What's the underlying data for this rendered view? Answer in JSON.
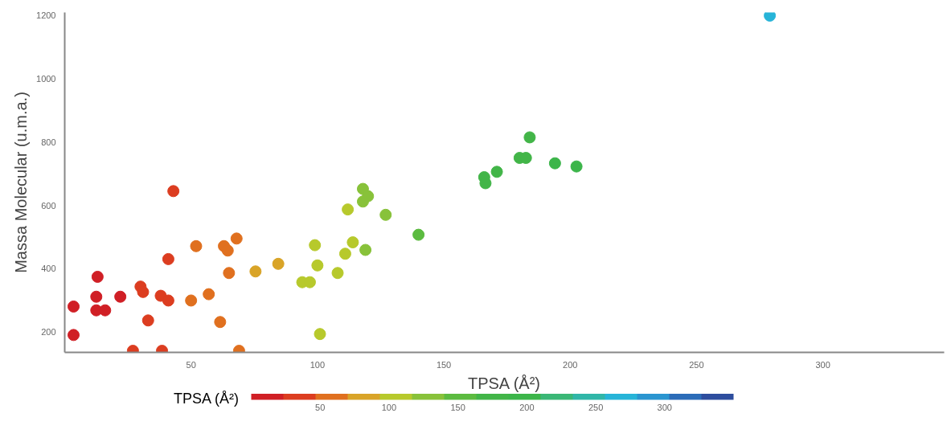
{
  "chart_data": {
    "type": "scatter",
    "xlabel": "TPSA (Å²)",
    "ylabel": "Massa Molecular (u.m.a.)",
    "clabel": "TPSA (Å²)",
    "x": [
      3.5,
      3.5,
      13,
      12.5,
      12.5,
      16,
      22,
      30,
      31,
      33,
      27,
      38.5,
      38,
      41,
      41,
      43,
      52,
      50,
      57,
      61.5,
      63,
      64.5,
      65,
      68,
      69,
      75.5,
      84.5,
      94,
      97,
      99,
      100,
      101,
      108,
      111,
      114,
      119,
      112,
      118,
      118,
      120,
      127,
      140,
      166,
      166.5,
      171,
      180,
      182.5,
      184,
      194,
      202.5,
      279
    ],
    "values": [
      280,
      190,
      374,
      311,
      268,
      268,
      311,
      343,
      326,
      236,
      140,
      140,
      314,
      299,
      430,
      645,
      471,
      299,
      319,
      231,
      471,
      457,
      386,
      495,
      140,
      391,
      415,
      357,
      357,
      474,
      410,
      193,
      386,
      447,
      483,
      459,
      587,
      652,
      612,
      629,
      570,
      507,
      689,
      670,
      706,
      750,
      750,
      815,
      733,
      723,
      1200
    ],
    "cvalues": [
      3.5,
      3.5,
      13,
      12.5,
      12.5,
      16,
      22,
      30,
      31,
      33,
      27,
      38.5,
      38,
      41,
      41,
      43,
      52,
      50,
      57,
      61.5,
      63,
      64.5,
      65,
      68,
      69,
      75.5,
      84.5,
      94,
      97,
      99,
      100,
      101,
      108,
      111,
      114,
      119,
      112,
      118,
      118,
      120,
      127,
      140,
      166,
      166.5,
      171,
      180,
      182.5,
      184,
      194,
      202.5,
      279
    ],
    "xlim": [
      0,
      348
    ],
    "ylim": [
      135,
      1210
    ],
    "xticks": [
      50,
      100,
      150,
      200,
      250,
      300
    ],
    "yticks": [
      200,
      400,
      600,
      800,
      1000,
      1200
    ],
    "clim": [
      0,
      350
    ],
    "cticks": [
      50,
      100,
      150,
      200,
      250,
      300
    ],
    "marker": "circle",
    "grid": false
  }
}
